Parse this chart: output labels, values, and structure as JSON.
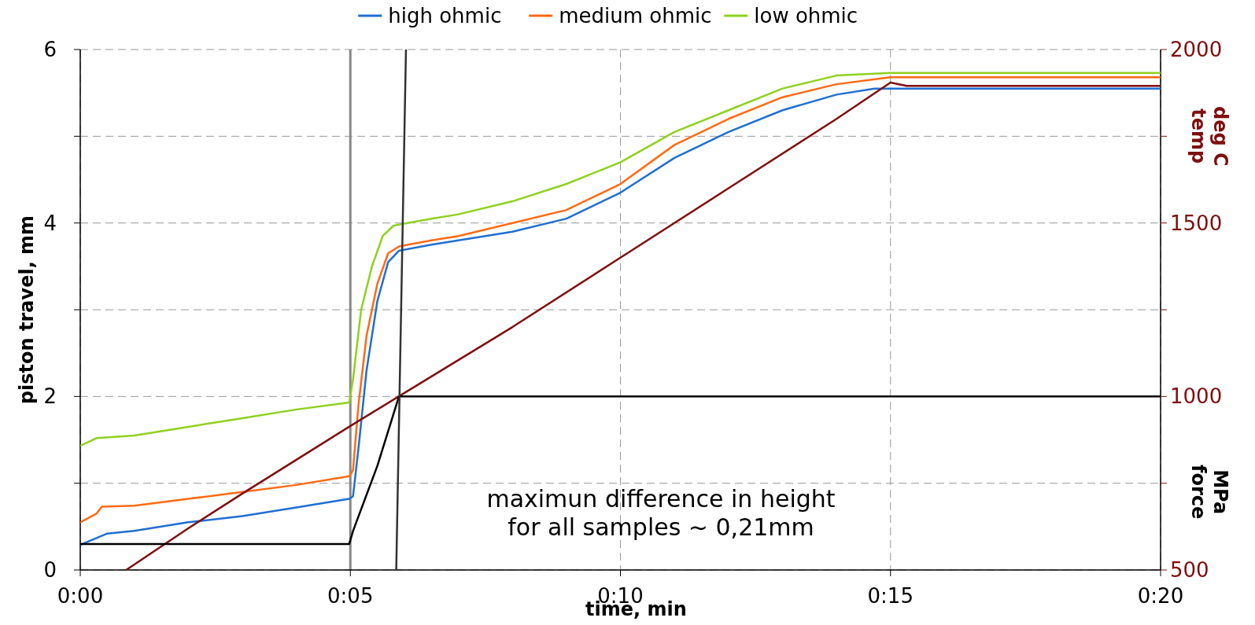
{
  "chart_data": {
    "type": "line",
    "xlabel": "time, min",
    "ylabel": "piston travel, mm",
    "y2label": "temp\ndeg C",
    "annotations": [
      "maximun difference in height\nfor all samples ~ 0,21mm",
      "force\nMPa"
    ],
    "xlim": [
      0,
      20
    ],
    "xticks": [
      {
        "value": 0,
        "label": "0:00"
      },
      {
        "value": 5,
        "label": "0:05"
      },
      {
        "value": 10,
        "label": "0:10"
      },
      {
        "value": 15,
        "label": "0:15"
      },
      {
        "value": 20,
        "label": "0:20"
      }
    ],
    "ylim": [
      0,
      6
    ],
    "yticks": [
      0,
      {
        "value": 1,
        "label": null
      },
      2,
      {
        "value": 3,
        "label": null
      },
      4,
      {
        "value": 5,
        "label": null
      },
      6
    ],
    "y2lim": [
      500,
      2000
    ],
    "y2ticks": [
      500,
      {
        "value": 750,
        "label": null
      },
      1000,
      {
        "value": 1250,
        "label": null
      },
      1500,
      {
        "value": 1750,
        "label": null
      },
      2000
    ],
    "grid": true,
    "legend": "top",
    "line_style": "solid",
    "ref_lines": [
      {
        "axis": "x",
        "value": 5,
        "color": "#888888"
      }
    ],
    "series": [
      {
        "name": "high ohmic",
        "color": "#1f6fd1",
        "x": [
          0,
          0.5,
          1,
          2,
          3,
          4,
          4.98,
          5.05,
          5.15,
          5.3,
          5.5,
          5.7,
          5.9,
          6.5,
          7,
          8,
          9,
          10,
          11,
          12,
          13,
          14,
          14.7,
          15,
          20
        ],
        "values": [
          0.29,
          0.42,
          0.45,
          0.55,
          0.62,
          0.72,
          0.82,
          0.85,
          1.4,
          2.3,
          3.1,
          3.55,
          3.68,
          3.75,
          3.8,
          3.9,
          4.05,
          4.35,
          4.75,
          5.05,
          5.3,
          5.48,
          5.55,
          5.55,
          5.55
        ]
      },
      {
        "name": "medium ohmic",
        "color": "#ff6a13",
        "x": [
          0,
          0.3,
          0.4,
          1,
          2,
          3,
          4,
          4.98,
          5.05,
          5.15,
          5.3,
          5.5,
          5.7,
          5.9,
          6.5,
          7,
          8,
          9,
          10,
          11,
          12,
          13,
          14,
          15,
          20
        ],
        "values": [
          0.55,
          0.65,
          0.73,
          0.74,
          0.82,
          0.9,
          0.98,
          1.08,
          1.15,
          1.9,
          2.7,
          3.3,
          3.65,
          3.73,
          3.8,
          3.85,
          4.0,
          4.15,
          4.45,
          4.9,
          5.2,
          5.45,
          5.6,
          5.68,
          5.68
        ]
      },
      {
        "name": "low ohmic",
        "color": "#8fd11f",
        "x": [
          0,
          0.3,
          1,
          2,
          3,
          4,
          4.98,
          5.05,
          5.2,
          5.4,
          5.6,
          5.8,
          6.5,
          7,
          8,
          9,
          10,
          11,
          12,
          13,
          14,
          15,
          20
        ],
        "values": [
          1.43,
          1.52,
          1.55,
          1.65,
          1.75,
          1.85,
          1.93,
          2.2,
          3.0,
          3.5,
          3.85,
          3.97,
          4.05,
          4.1,
          4.25,
          4.45,
          4.7,
          5.05,
          5.3,
          5.55,
          5.7,
          5.73,
          5.73
        ]
      },
      {
        "color": "#7f0e0e",
        "axis": "y2",
        "x": [
          0.85,
          2,
          3,
          5,
          6,
          8,
          10,
          12,
          14,
          15,
          15.3,
          20
        ],
        "values": [
          500,
          620,
          720,
          915,
          1010,
          1200,
          1400,
          1600,
          1800,
          1905,
          1895,
          1895
        ]
      },
      {
        "color": "#000000",
        "x": [
          0,
          4.98,
          5.05,
          5.5,
          5.9,
          20
        ],
        "values": [
          0.3,
          0.3,
          0.45,
          1.2,
          2.0,
          2.0
        ]
      },
      {
        "color": "#333333",
        "x": [
          6.03,
          5.85
        ],
        "values": [
          6,
          0
        ]
      }
    ]
  }
}
